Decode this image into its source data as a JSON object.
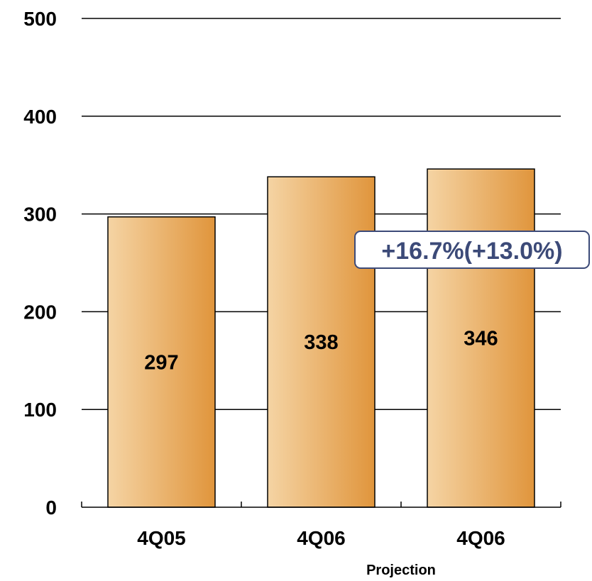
{
  "chart_data": {
    "type": "bar",
    "categories": [
      "4Q05",
      "4Q06",
      "4Q06"
    ],
    "values": [
      297,
      338,
      346
    ],
    "data_labels": [
      "297",
      "338",
      "346"
    ],
    "category_sublabels": [
      "",
      "",
      "Projection"
    ],
    "ylim": [
      0,
      500
    ],
    "yticks": [
      0,
      100,
      200,
      300,
      400,
      500
    ],
    "ytick_labels": [
      "0",
      "100",
      "200",
      "300",
      "400",
      "500"
    ],
    "grid": true,
    "annotation": "+16.7%(+13.0%)",
    "colors": {
      "bar_light": "#f5d4a4",
      "bar_dark": "#e0953c",
      "bar_stroke": "#000000",
      "annotation_text": "#3c4a78",
      "annotation_border": "#3c4a78",
      "grid": "#000000"
    }
  }
}
